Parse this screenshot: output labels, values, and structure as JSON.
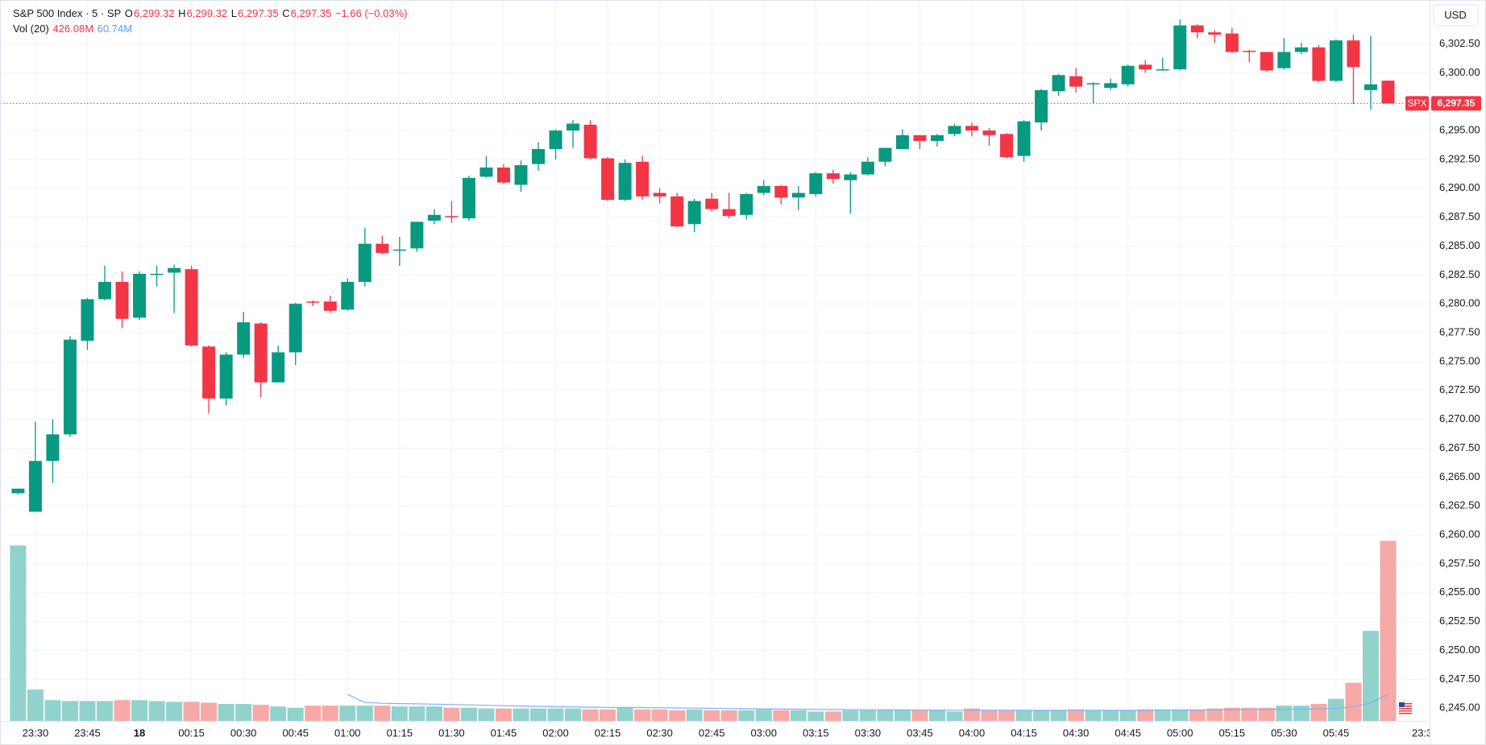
{
  "chart_data": {
    "type": "candlestick",
    "header": {
      "title": "S&P 500 Index · 5 · SP",
      "o_label": "O",
      "o": "6,299.32",
      "h_label": "H",
      "h": "6,299.32",
      "l_label": "L",
      "l": "6,297.35",
      "c_label": "C",
      "c": "6,297.35",
      "change": "−1.66 (−0.03%)",
      "vol_title": "Vol (20)",
      "vol": "426.08M",
      "vol_ma": "60.74M"
    },
    "currency": "USD",
    "symbol_tag": "SPX",
    "last_price_label": "6,297.35",
    "edge_time_label": "23:3",
    "up_color": "#089981",
    "down_color": "#f23645",
    "up_volume_color": "#92d2cc",
    "down_volume_color": "#f7a9a7",
    "volume_ma_color": "#7fb1f4",
    "grid": true,
    "categories": [
      null,
      "23:30",
      null,
      null,
      "23:45",
      null,
      null,
      "18",
      null,
      null,
      "00:15",
      null,
      null,
      "00:30",
      null,
      null,
      "00:45",
      null,
      null,
      "01:00",
      null,
      null,
      "01:15",
      null,
      null,
      "01:30",
      null,
      null,
      "01:45",
      null,
      null,
      "02:00",
      null,
      null,
      "02:15",
      null,
      null,
      "02:30",
      null,
      null,
      "02:45",
      null,
      null,
      "03:00",
      null,
      null,
      "03:15",
      null,
      null,
      "03:30",
      null,
      null,
      "03:45",
      null,
      null,
      "04:00",
      null,
      null,
      "04:15",
      null,
      null,
      "04:30",
      null,
      null,
      "04:45",
      null,
      null,
      "05:00",
      null,
      null,
      "05:15",
      null,
      null,
      "05:30",
      null,
      null,
      "05:45",
      null,
      null,
      null
    ],
    "open": [
      6263.6,
      6262.0,
      6266.4,
      6268.7,
      6276.8,
      6280.4,
      6281.9,
      6278.8,
      6282.5,
      6282.7,
      6283.0,
      6276.3,
      6271.8,
      6275.6,
      6278.3,
      6273.2,
      6275.8,
      6280.2,
      6280.2,
      6279.5,
      6281.9,
      6285.2,
      6284.6,
      6284.8,
      6287.2,
      6287.6,
      6287.4,
      6291.0,
      6291.8,
      6290.3,
      6292.1,
      6293.4,
      6295.0,
      6295.5,
      6292.6,
      6289.0,
      6292.3,
      6289.6,
      6289.3,
      6286.9,
      6289.1,
      6288.2,
      6287.7,
      6289.6,
      6290.2,
      6289.2,
      6289.5,
      6291.3,
      6290.7,
      6291.2,
      6292.3,
      6293.4,
      6294.6,
      6294.1,
      6294.7,
      6295.4,
      6295.0,
      6294.7,
      6292.8,
      6295.7,
      6298.4,
      6299.7,
      6299.0,
      6298.7,
      6299.0,
      6300.7,
      6300.3,
      6300.3,
      6304.1,
      6303.5,
      6303.4,
      6301.9,
      6301.8,
      6300.4,
      6301.8,
      6302.2,
      6299.3,
      6302.8,
      6298.5,
      6299.32
    ],
    "high": [
      6264.0,
      6269.8,
      6270.0,
      6277.2,
      6280.5,
      6283.3,
      6282.8,
      6282.8,
      6283.3,
      6283.4,
      6283.3,
      6276.4,
      6275.8,
      6279.3,
      6278.4,
      6276.4,
      6280.1,
      6280.3,
      6280.7,
      6282.2,
      6286.6,
      6285.9,
      6285.8,
      6287.1,
      6288.2,
      6288.9,
      6291.1,
      6292.8,
      6292.1,
      6292.4,
      6294.0,
      6295.1,
      6295.9,
      6295.9,
      6292.7,
      6292.5,
      6292.8,
      6290.0,
      6289.6,
      6289.1,
      6289.6,
      6289.6,
      6289.6,
      6290.7,
      6290.3,
      6290.2,
      6291.4,
      6291.6,
      6291.4,
      6292.7,
      6293.5,
      6295.1,
      6294.6,
      6294.7,
      6295.6,
      6295.7,
      6295.2,
      6294.8,
      6295.9,
      6298.6,
      6299.9,
      6300.4,
      6299.2,
      6299.5,
      6300.7,
      6301.1,
      6301.3,
      6304.6,
      6304.2,
      6303.7,
      6303.9,
      6302.0,
      6301.8,
      6303.0,
      6302.6,
      6302.4,
      6302.9,
      6303.3,
      6303.2,
      6299.32
    ],
    "low": [
      6263.5,
      6262.0,
      6264.5,
      6268.5,
      6276.0,
      6280.3,
      6277.9,
      6278.6,
      6281.5,
      6279.2,
      6276.3,
      6270.5,
      6271.2,
      6275.3,
      6271.9,
      6273.2,
      6274.7,
      6279.8,
      6279.2,
      6279.4,
      6281.5,
      6284.3,
      6283.3,
      6284.5,
      6286.9,
      6287.0,
      6287.2,
      6290.9,
      6290.4,
      6289.7,
      6291.5,
      6292.5,
      6293.5,
      6292.5,
      6288.9,
      6288.9,
      6289.0,
      6288.7,
      6286.6,
      6286.2,
      6288.0,
      6287.4,
      6287.3,
      6289.4,
      6288.6,
      6288.1,
      6289.3,
      6290.4,
      6287.8,
      6291.1,
      6291.9,
      6293.4,
      6293.4,
      6293.6,
      6294.5,
      6294.5,
      6293.7,
      6292.6,
      6292.3,
      6295.0,
      6298.0,
      6298.3,
      6297.3,
      6298.5,
      6298.8,
      6300.0,
      6300.2,
      6300.2,
      6303.0,
      6302.6,
      6301.7,
      6300.9,
      6300.1,
      6300.3,
      6301.6,
      6299.2,
      6299.2,
      6297.3,
      6296.8,
      6297.35
    ],
    "close": [
      6264.0,
      6266.4,
      6268.7,
      6276.9,
      6280.4,
      6281.9,
      6278.7,
      6282.6,
      6282.6,
      6283.1,
      6276.4,
      6271.8,
      6275.6,
      6278.4,
      6273.2,
      6275.8,
      6280.0,
      6280.1,
      6279.4,
      6281.9,
      6285.2,
      6284.4,
      6284.7,
      6287.1,
      6287.7,
      6287.5,
      6290.9,
      6291.8,
      6290.5,
      6292.0,
      6293.4,
      6295.0,
      6295.6,
      6292.6,
      6289.0,
      6292.2,
      6289.3,
      6289.3,
      6286.7,
      6288.9,
      6288.2,
      6287.6,
      6289.5,
      6290.2,
      6289.2,
      6289.6,
      6291.3,
      6290.8,
      6291.2,
      6292.3,
      6293.5,
      6294.6,
      6294.1,
      6294.6,
      6295.4,
      6295.0,
      6294.6,
      6292.7,
      6295.8,
      6298.5,
      6299.8,
      6298.8,
      6299.1,
      6299.1,
      6300.6,
      6300.3,
      6300.3,
      6304.1,
      6303.5,
      6303.3,
      6301.8,
      6301.8,
      6300.2,
      6301.8,
      6302.2,
      6299.3,
      6302.8,
      6300.5,
      6299.0,
      6297.35
    ],
    "volume": [
      415,
      74,
      49,
      47,
      47,
      47,
      49,
      49,
      47,
      45,
      45,
      43,
      40,
      40,
      38,
      34,
      31,
      36,
      36,
      36,
      36,
      36,
      34,
      34,
      34,
      31,
      31,
      29,
      29,
      29,
      29,
      29,
      29,
      27,
      27,
      31,
      27,
      27,
      25,
      27,
      25,
      25,
      25,
      27,
      25,
      25,
      22,
      22,
      25,
      25,
      25,
      25,
      25,
      25,
      22,
      29,
      25,
      25,
      25,
      25,
      25,
      27,
      25,
      25,
      25,
      27,
      27,
      27,
      27,
      29,
      31,
      31,
      31,
      36,
      36,
      40,
      52,
      90,
      213,
      426.08
    ],
    "ylim": [
      6243.9,
      6306.3
    ],
    "y2lim": [
      0,
      1706
    ],
    "yticks": [
      {
        "value": 6245,
        "label": "6,245.00"
      },
      {
        "value": 6247.5,
        "label": "6,247.50"
      },
      {
        "value": 6250,
        "label": "6,250.00"
      },
      {
        "value": 6252.5,
        "label": "6,252.50"
      },
      {
        "value": 6255,
        "label": "6,255.00"
      },
      {
        "value": 6257.5,
        "label": "6,257.50"
      },
      {
        "value": 6260,
        "label": "6,260.00"
      },
      {
        "value": 6262.5,
        "label": "6,262.50"
      },
      {
        "value": 6265,
        "label": "6,265.00"
      },
      {
        "value": 6267.5,
        "label": "6,267.50"
      },
      {
        "value": 6270,
        "label": "6,270.00"
      },
      {
        "value": 6272.5,
        "label": "6,272.50"
      },
      {
        "value": 6275,
        "label": "6,275.00"
      },
      {
        "value": 6277.5,
        "label": "6,277.50"
      },
      {
        "value": 6280,
        "label": "6,280.00"
      },
      {
        "value": 6282.5,
        "label": "6,282.50"
      },
      {
        "value": 6285,
        "label": "6,285.00"
      },
      {
        "value": 6287.5,
        "label": "6,287.50"
      },
      {
        "value": 6290,
        "label": "6,290.00"
      },
      {
        "value": 6292.5,
        "label": "6,292.50"
      },
      {
        "value": 6295,
        "label": "6,295.00"
      },
      {
        "value": 6297.5,
        "label": "6,297.50"
      },
      {
        "value": 6300,
        "label": "6,300.00"
      },
      {
        "value": 6302.5,
        "label": "6,302.50"
      }
    ]
  }
}
